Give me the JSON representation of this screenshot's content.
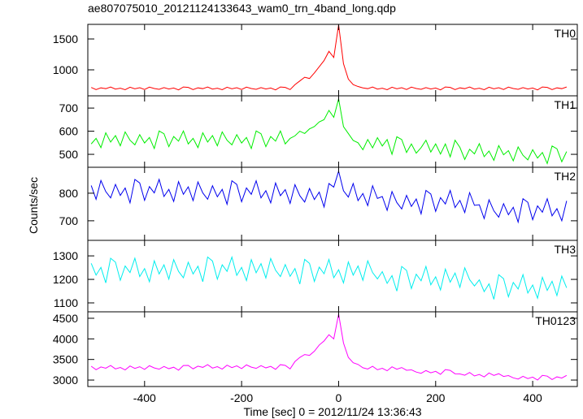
{
  "chart_data": [
    {
      "type": "line",
      "title": "ae807075010_20121124133643_wam0_trn_4band_long.qdp",
      "label": "TH0",
      "x": [
        -510,
        -500,
        -490,
        -480,
        -470,
        -460,
        -450,
        -440,
        -430,
        -420,
        -410,
        -400,
        -390,
        -380,
        -370,
        -360,
        -350,
        -340,
        -330,
        -320,
        -310,
        -300,
        -290,
        -280,
        -270,
        -260,
        -250,
        -240,
        -230,
        -220,
        -210,
        -200,
        -190,
        -180,
        -170,
        -160,
        -150,
        -140,
        -130,
        -120,
        -110,
        -100,
        -90,
        -80,
        -70,
        -60,
        -50,
        -40,
        -30,
        -20,
        -10,
        0,
        10,
        20,
        30,
        40,
        50,
        60,
        70,
        80,
        90,
        100,
        110,
        120,
        130,
        140,
        150,
        160,
        170,
        180,
        190,
        200,
        210,
        220,
        230,
        240,
        250,
        260,
        270,
        280,
        290,
        300,
        310,
        320,
        330,
        340,
        350,
        360,
        370,
        380,
        390,
        400,
        410,
        420,
        430,
        440,
        450,
        460,
        470
      ],
      "series": [
        {
          "name": "TH0",
          "color": "#ff0000",
          "values": [
            715,
            680,
            708,
            695,
            722,
            688,
            702,
            678,
            718,
            692,
            710,
            682,
            720,
            698,
            685,
            712,
            690,
            705,
            675,
            722,
            715,
            680,
            708,
            695,
            722,
            688,
            702,
            678,
            718,
            692,
            710,
            682,
            720,
            698,
            685,
            712,
            690,
            705,
            675,
            722,
            715,
            680,
            760,
            820,
            880,
            860,
            950,
            1050,
            1150,
            1300,
            1200,
            1730,
            1100,
            850,
            760,
            730,
            708,
            695,
            722,
            688,
            702,
            678,
            718,
            692,
            710,
            682,
            720,
            698,
            685,
            712,
            690,
            705,
            675,
            722,
            715,
            680,
            708,
            695,
            722,
            688,
            702,
            678,
            718,
            692,
            710,
            682,
            720,
            698,
            685,
            712,
            690,
            705,
            675,
            722,
            715,
            680,
            708,
            695,
            722
          ]
        }
      ],
      "xlim": [
        -517,
        492
      ],
      "xticks": [
        -400,
        -200,
        0,
        200,
        400
      ],
      "ylim": [
        579,
        1737
      ],
      "yticks": [
        1000,
        1500
      ]
    },
    {
      "type": "line",
      "label": "TH1",
      "x": [
        -510,
        -500,
        -490,
        -480,
        -470,
        -460,
        -450,
        -440,
        -430,
        -420,
        -410,
        -400,
        -390,
        -380,
        -370,
        -360,
        -350,
        -340,
        -330,
        -320,
        -310,
        -300,
        -290,
        -280,
        -270,
        -260,
        -250,
        -240,
        -230,
        -220,
        -210,
        -200,
        -190,
        -180,
        -170,
        -160,
        -150,
        -140,
        -130,
        -120,
        -110,
        -100,
        -90,
        -80,
        -70,
        -60,
        -50,
        -40,
        -30,
        -20,
        -10,
        0,
        10,
        20,
        30,
        40,
        50,
        60,
        70,
        80,
        90,
        100,
        110,
        120,
        130,
        140,
        150,
        160,
        170,
        180,
        190,
        200,
        210,
        220,
        230,
        240,
        250,
        260,
        270,
        280,
        290,
        300,
        310,
        320,
        330,
        340,
        350,
        360,
        370,
        380,
        390,
        400,
        410,
        420,
        430,
        440,
        450,
        460,
        470
      ],
      "series": [
        {
          "name": "TH1",
          "color": "#00ee00",
          "values": [
            545,
            569,
            529,
            593,
            553,
            581,
            537,
            597,
            561,
            541,
            585,
            549,
            573,
            525,
            601,
            589,
            533,
            577,
            557,
            601,
            545,
            569,
            529,
            593,
            553,
            581,
            537,
            597,
            561,
            541,
            585,
            549,
            573,
            525,
            601,
            589,
            533,
            577,
            557,
            601,
            545,
            569,
            580,
            600,
            590,
            610,
            620,
            640,
            650,
            690,
            660,
            740,
            620,
            590,
            560,
            550,
            520,
            564,
            528,
            572,
            536,
            564,
            500,
            576,
            564,
            508,
            545,
            505,
            529,
            561,
            510,
            545,
            501,
            545,
            489,
            561,
            530,
            478,
            522,
            502,
            546,
            490,
            514,
            474,
            538,
            498,
            516,
            472,
            532,
            496,
            476,
            520,
            484,
            508,
            460,
            536,
            524,
            468,
            512
          ]
        }
      ],
      "xlim": [
        -517,
        492
      ],
      "xticks": [
        -400,
        -200,
        0,
        200,
        400
      ],
      "ylim": [
        444,
        753
      ],
      "yticks": [
        500,
        600,
        700
      ]
    },
    {
      "type": "line",
      "label": "TH2",
      "ylabel": "Counts/sec",
      "x": [
        -510,
        -500,
        -490,
        -480,
        -470,
        -460,
        -450,
        -440,
        -430,
        -420,
        -410,
        -400,
        -390,
        -380,
        -370,
        -360,
        -350,
        -340,
        -330,
        -320,
        -310,
        -300,
        -290,
        -280,
        -270,
        -260,
        -250,
        -240,
        -230,
        -220,
        -210,
        -200,
        -190,
        -180,
        -170,
        -160,
        -150,
        -140,
        -130,
        -120,
        -110,
        -100,
        -90,
        -80,
        -70,
        -60,
        -50,
        -40,
        -30,
        -20,
        -10,
        0,
        10,
        20,
        30,
        40,
        50,
        60,
        70,
        80,
        90,
        100,
        110,
        120,
        130,
        140,
        150,
        160,
        170,
        180,
        190,
        200,
        210,
        220,
        230,
        240,
        250,
        260,
        270,
        280,
        290,
        300,
        310,
        320,
        330,
        340,
        350,
        360,
        370,
        380,
        390,
        400,
        410,
        420,
        430,
        440,
        450,
        460,
        470
      ],
      "series": [
        {
          "name": "TH2",
          "color": "#0000ee",
          "values": [
            828,
            778,
            846,
            806,
            783,
            832,
            792,
            819,
            765,
            850,
            837,
            774,
            824,
            801,
            850,
            788,
            814,
            770,
            842,
            796,
            823,
            773,
            841,
            801,
            778,
            827,
            787,
            814,
            760,
            845,
            832,
            769,
            819,
            796,
            845,
            783,
            809,
            765,
            837,
            791,
            813,
            763,
            831,
            791,
            768,
            817,
            777,
            804,
            750,
            835,
            822,
            880,
            809,
            786,
            835,
            773,
            799,
            755,
            827,
            781,
            788,
            738,
            806,
            766,
            743,
            792,
            752,
            779,
            725,
            810,
            797,
            734,
            784,
            761,
            810,
            748,
            774,
            730,
            802,
            756,
            758,
            708,
            776,
            736,
            713,
            762,
            722,
            749,
            695,
            780,
            767,
            704,
            754,
            731,
            780,
            718,
            744,
            700,
            772
          ]
        }
      ],
      "xlim": [
        -517,
        492
      ],
      "xticks": [
        -400,
        -200,
        0,
        200,
        400
      ],
      "ylim": [
        629,
        894
      ],
      "yticks": [
        700,
        800
      ]
    },
    {
      "type": "line",
      "label": "TH3",
      "x": [
        -510,
        -500,
        -490,
        -480,
        -470,
        -460,
        -450,
        -440,
        -430,
        -420,
        -410,
        -400,
        -390,
        -380,
        -370,
        -360,
        -350,
        -340,
        -330,
        -320,
        -310,
        -300,
        -290,
        -280,
        -270,
        -260,
        -250,
        -240,
        -230,
        -220,
        -210,
        -200,
        -190,
        -180,
        -170,
        -160,
        -150,
        -140,
        -130,
        -120,
        -110,
        -100,
        -90,
        -80,
        -70,
        -60,
        -50,
        -40,
        -30,
        -20,
        -10,
        0,
        10,
        20,
        30,
        40,
        50,
        60,
        70,
        80,
        90,
        100,
        110,
        120,
        130,
        140,
        150,
        160,
        170,
        180,
        190,
        200,
        210,
        220,
        230,
        240,
        250,
        260,
        270,
        280,
        290,
        300,
        310,
        320,
        330,
        340,
        350,
        360,
        370,
        380,
        390,
        400,
        410,
        420,
        430,
        440,
        450,
        460,
        470
      ],
      "series": [
        {
          "name": "TH3",
          "color": "#00eeee",
          "values": [
            1268,
            1218,
            1251,
            1185,
            1290,
            1273,
            1196,
            1257,
            1229,
            1290,
            1212,
            1246,
            1190,
            1279,
            1223,
            1262,
            1201,
            1284,
            1234,
            1207,
            1273,
            1223,
            1256,
            1190,
            1295,
            1278,
            1201,
            1262,
            1234,
            1295,
            1217,
            1251,
            1195,
            1284,
            1228,
            1267,
            1206,
            1289,
            1239,
            1212,
            1263,
            1213,
            1246,
            1180,
            1285,
            1268,
            1191,
            1252,
            1224,
            1285,
            1207,
            1241,
            1185,
            1274,
            1218,
            1257,
            1196,
            1279,
            1229,
            1202,
            1233,
            1183,
            1216,
            1150,
            1255,
            1238,
            1161,
            1222,
            1194,
            1255,
            1177,
            1211,
            1155,
            1244,
            1188,
            1227,
            1166,
            1249,
            1199,
            1172,
            1198,
            1148,
            1181,
            1115,
            1220,
            1203,
            1126,
            1187,
            1159,
            1220,
            1142,
            1176,
            1120,
            1209,
            1153,
            1192,
            1131,
            1214,
            1164
          ]
        }
      ],
      "xlim": [
        -517,
        492
      ],
      "xticks": [
        -400,
        -200,
        0,
        200,
        400
      ],
      "ylim": [
        1062,
        1366
      ],
      "yticks": [
        1100,
        1200,
        1300
      ]
    },
    {
      "type": "line",
      "label": "TH0123",
      "xlabel": "Time [sec] 0 = 2012/11/24 13:36:43",
      "x": [
        -510,
        -500,
        -490,
        -480,
        -470,
        -460,
        -450,
        -440,
        -430,
        -420,
        -410,
        -400,
        -390,
        -380,
        -370,
        -360,
        -350,
        -340,
        -330,
        -320,
        -310,
        -300,
        -290,
        -280,
        -270,
        -260,
        -250,
        -240,
        -230,
        -220,
        -210,
        -200,
        -190,
        -180,
        -170,
        -160,
        -150,
        -140,
        -130,
        -120,
        -110,
        -100,
        -90,
        -80,
        -70,
        -60,
        -50,
        -40,
        -30,
        -20,
        -10,
        0,
        10,
        20,
        30,
        40,
        50,
        60,
        70,
        80,
        90,
        100,
        110,
        120,
        130,
        140,
        150,
        160,
        170,
        180,
        190,
        200,
        210,
        220,
        230,
        240,
        250,
        260,
        270,
        280,
        290,
        300,
        310,
        320,
        330,
        340,
        350,
        360,
        370,
        380,
        390,
        400,
        410,
        420,
        430,
        440,
        450,
        460,
        470
      ],
      "series": [
        {
          "name": "TH0123",
          "color": "#ff00ff",
          "values": [
            3336,
            3252,
            3318,
            3288,
            3354,
            3270,
            3306,
            3246,
            3342,
            3282,
            3324,
            3258,
            3348,
            3294,
            3264,
            3330,
            3276,
            3312,
            3240,
            3354,
            3356,
            3272,
            3338,
            3308,
            3374,
            3290,
            3326,
            3266,
            3362,
            3302,
            3344,
            3278,
            3368,
            3314,
            3284,
            3350,
            3296,
            3332,
            3260,
            3374,
            3356,
            3272,
            3450,
            3550,
            3620,
            3600,
            3700,
            3850,
            3950,
            4100,
            4000,
            4600,
            3900,
            3550,
            3420,
            3380,
            3298,
            3268,
            3334,
            3250,
            3286,
            3226,
            3322,
            3262,
            3304,
            3238,
            3248,
            3194,
            3164,
            3230,
            3176,
            3212,
            3140,
            3254,
            3236,
            3152,
            3148,
            3118,
            3184,
            3100,
            3136,
            3076,
            3172,
            3112,
            3154,
            3088,
            3108,
            3054,
            3024,
            3090,
            3036,
            3072,
            3000,
            3114,
            3096,
            3012,
            3078,
            3048,
            3114
          ]
        }
      ],
      "xlim": [
        -517,
        492
      ],
      "xticks": [
        -400,
        -200,
        0,
        200,
        400
      ],
      "ylim": [
        2843,
        4657
      ],
      "yticks": [
        3000,
        3500,
        4000,
        4500
      ]
    }
  ]
}
